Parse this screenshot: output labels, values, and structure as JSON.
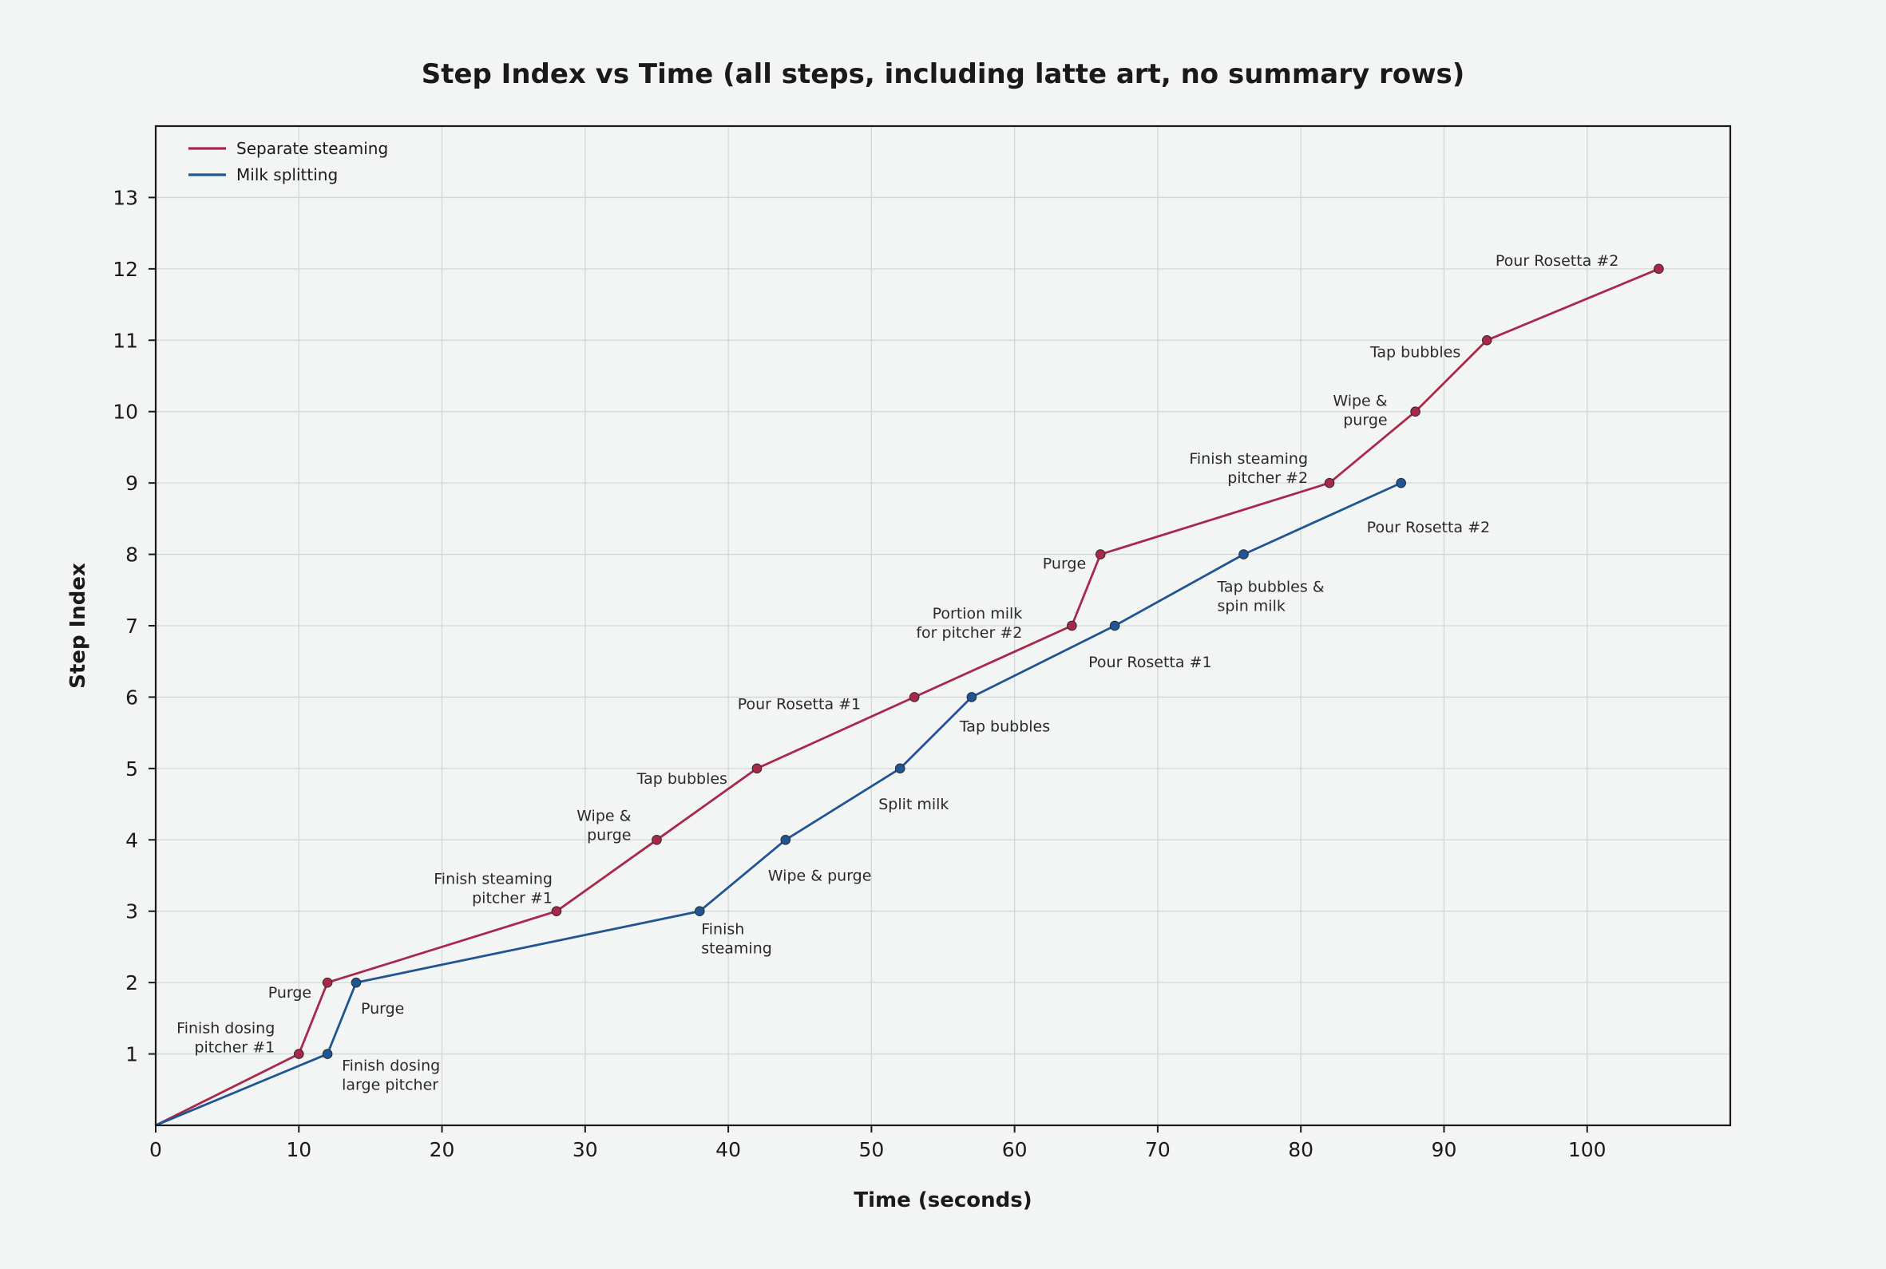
{
  "chart_data": {
    "type": "line",
    "title": "Step Index vs Time (all steps, including latte art, no summary rows)",
    "xlabel": "Time (seconds)",
    "ylabel": "Step Index",
    "xlim": [
      0,
      110
    ],
    "ylim": [
      0,
      14
    ],
    "x_ticks": [
      0,
      10,
      20,
      30,
      40,
      50,
      60,
      70,
      80,
      90,
      100
    ],
    "y_ticks": [
      1,
      2,
      3,
      4,
      5,
      6,
      7,
      8,
      9,
      10,
      11,
      12,
      13
    ],
    "grid": true,
    "legend_position": "top-left",
    "series": [
      {
        "name": "Separate steaming",
        "color": "#a8284a",
        "x": [
          0,
          10,
          12,
          28,
          35,
          42,
          53,
          64,
          66,
          82,
          88,
          93,
          105
        ],
        "y": [
          0,
          1,
          2,
          3,
          4,
          5,
          6,
          7,
          8,
          9,
          10,
          11,
          12
        ],
        "labels": [
          "",
          "Finish dosing\npitcher #1",
          "Purge",
          "Finish steaming\npitcher #1",
          "Wipe &\npurge",
          "Tap bubbles",
          "Pour Rosetta #1",
          "Portion milk\nfor pitcher #2",
          "Purge",
          "Finish steaming\npitcher #2",
          "Wipe &\npurge",
          "Tap bubbles",
          "Pour Rosetta #2"
        ]
      },
      {
        "name": "Milk splitting",
        "color": "#1f5593",
        "x": [
          0,
          12,
          14,
          38,
          44,
          52,
          57,
          67,
          76,
          87
        ],
        "y": [
          0,
          1,
          2,
          3,
          4,
          5,
          6,
          7,
          8,
          9
        ],
        "labels": [
          "",
          "Finish dosing\nlarge pitcher",
          "Purge",
          "Finish\nsteaming",
          "Wipe & purge",
          "Split milk",
          "Tap bubbles",
          "Pour Rosetta #1",
          "Tap bubbles &\nspin milk",
          "Pour Rosetta #2"
        ]
      }
    ]
  }
}
